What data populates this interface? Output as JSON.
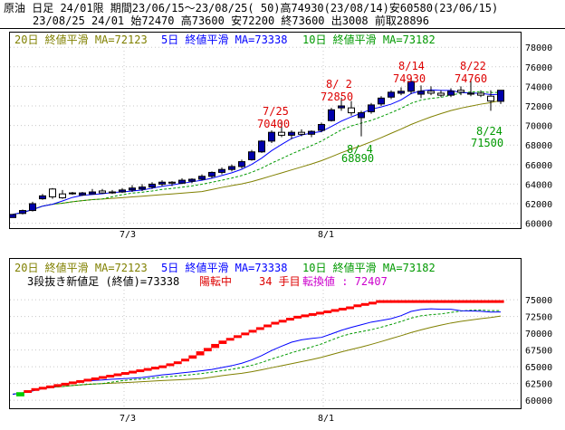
{
  "header": {
    "line1": "原油 日足 24/01限 期間23/06/15～23/08/25( 50)高74930(23/08/14)安60580(23/06/15)",
    "line2": "23/08/25 24/01 始72470 高73600 安72200 終73600 出3008 前取28896"
  },
  "colors": {
    "up": "#0000aa",
    "down": "#ffffff",
    "ma5": "#0000ff",
    "ma10": "#009900",
    "ma20": "#808000",
    "label_red": "#dd0000",
    "label_green": "#009900",
    "brick": "#ff0000",
    "start": "#00cc00"
  },
  "top_legend": {
    "ma20": "20日 終値平滑 MA=72123",
    "ma5": "5日 終値平滑 MA=73338",
    "ma10": "10日 終値平滑 MA=73182"
  },
  "bottom_legend": {
    "ma20": "20日 終値平滑 MA=72123",
    "ma5": "5日 終値平滑 MA=73338",
    "ma10": "10日 終値平滑 MA=73182",
    "kagi_label": "3段抜き新値足 (終値)=73338",
    "turn": "陽転中",
    "count": "34 手目",
    "conv": "転換値 : 72407"
  },
  "chart_data": [
    {
      "type": "candlestick",
      "ylim": [
        59500,
        79500
      ],
      "yticks": [
        "60000",
        "62000",
        "64000",
        "66000",
        "68000",
        "70000",
        "72000",
        "74000",
        "76000",
        "78000"
      ],
      "xticks": [
        "7/3",
        "8/1"
      ],
      "annotations": [
        {
          "date": "7/25",
          "value": "70400",
          "color": "red"
        },
        {
          "date": "8/ 2",
          "value": "72850",
          "color": "red"
        },
        {
          "date": "8/14",
          "value": "74930",
          "color": "red"
        },
        {
          "date": "8/22",
          "value": "74760",
          "color": "red"
        },
        {
          "date": "8/ 4",
          "value": "68890",
          "color": "green"
        },
        {
          "date": "8/24",
          "value": "71500",
          "color": "green"
        }
      ],
      "candles": [
        [
          60580,
          60900,
          60580,
          60900
        ],
        [
          61000,
          61400,
          60900,
          61300
        ],
        [
          61300,
          62200,
          61200,
          62000
        ],
        [
          62500,
          63000,
          62400,
          62800
        ],
        [
          63500,
          63600,
          62500,
          62700
        ],
        [
          63000,
          63400,
          62500,
          62600
        ],
        [
          63100,
          63200,
          62900,
          63100
        ],
        [
          62900,
          63200,
          62800,
          63100
        ],
        [
          63000,
          63500,
          63000,
          63200
        ],
        [
          63300,
          63500,
          63000,
          63100
        ],
        [
          63100,
          63400,
          63000,
          63200
        ],
        [
          63200,
          63600,
          63100,
          63400
        ],
        [
          63400,
          63900,
          63200,
          63600
        ],
        [
          63500,
          64000,
          63300,
          63700
        ],
        [
          63700,
          64200,
          63500,
          64000
        ],
        [
          64000,
          64400,
          63800,
          64200
        ],
        [
          64200,
          64300,
          63800,
          64100
        ],
        [
          64100,
          64600,
          64000,
          64400
        ],
        [
          64300,
          64600,
          64100,
          64500
        ],
        [
          64500,
          65000,
          64400,
          64800
        ],
        [
          64800,
          65300,
          64600,
          65200
        ],
        [
          65200,
          65700,
          65000,
          65500
        ],
        [
          65500,
          66000,
          65300,
          65800
        ],
        [
          65800,
          66500,
          65600,
          66300
        ],
        [
          66500,
          67500,
          66400,
          67300
        ],
        [
          67300,
          68500,
          67200,
          68400
        ],
        [
          68400,
          69500,
          68200,
          69300
        ],
        [
          69300,
          70400,
          68800,
          69000
        ],
        [
          69000,
          69500,
          68600,
          69300
        ],
        [
          69300,
          69600,
          68900,
          69100
        ],
        [
          69100,
          69500,
          68800,
          69400
        ],
        [
          69500,
          70300,
          69300,
          70100
        ],
        [
          70500,
          71800,
          70400,
          71600
        ],
        [
          71800,
          72850,
          71500,
          72000
        ],
        [
          71800,
          72500,
          71000,
          71300
        ],
        [
          70800,
          71500,
          68890,
          71300
        ],
        [
          71400,
          72300,
          71200,
          72100
        ],
        [
          72200,
          73000,
          72000,
          72800
        ],
        [
          72900,
          73600,
          72700,
          73400
        ],
        [
          73300,
          73900,
          73100,
          73500
        ],
        [
          73500,
          74930,
          73200,
          74500
        ],
        [
          73200,
          74100,
          72800,
          73500
        ],
        [
          73500,
          74000,
          73100,
          73300
        ],
        [
          73300,
          73600,
          72900,
          73100
        ],
        [
          73100,
          73800,
          72900,
          73500
        ],
        [
          73600,
          74000,
          73100,
          73400
        ],
        [
          73200,
          74760,
          73000,
          73300
        ],
        [
          73300,
          73600,
          72900,
          73100
        ],
        [
          73000,
          73600,
          71500,
          72500
        ],
        [
          72470,
          73600,
          72200,
          73600
        ]
      ],
      "ma_note": "MA5 / MA10 / MA20 smoothed close lines"
    },
    {
      "type": "bar",
      "subtype": "3-line break (closing)",
      "ylim": [
        58800,
        76500
      ],
      "yticks": [
        "60000",
        "62500",
        "65000",
        "67500",
        "70000",
        "72500",
        "75000"
      ],
      "xticks": [
        "7/3",
        "8/1"
      ],
      "bricks": [
        [
          60580,
          61200
        ],
        [
          61200,
          61500
        ],
        [
          61500,
          61800
        ],
        [
          61800,
          62000
        ],
        [
          62000,
          62200
        ],
        [
          62200,
          62400
        ],
        [
          62400,
          62600
        ],
        [
          62600,
          62800
        ],
        [
          62800,
          63000
        ],
        [
          63000,
          63200
        ],
        [
          63200,
          63400
        ],
        [
          63400,
          63600
        ],
        [
          63600,
          63800
        ],
        [
          63800,
          64000
        ],
        [
          64000,
          64200
        ],
        [
          64200,
          64400
        ],
        [
          64400,
          64600
        ],
        [
          64600,
          64800
        ],
        [
          64800,
          65000
        ],
        [
          65000,
          65200
        ],
        [
          65200,
          65500
        ],
        [
          65500,
          65800
        ],
        [
          65800,
          66200
        ],
        [
          66200,
          66700
        ],
        [
          66700,
          67300
        ],
        [
          67300,
          67800
        ],
        [
          67800,
          68400
        ],
        [
          68400,
          68900
        ],
        [
          68900,
          69300
        ],
        [
          69300,
          69700
        ],
        [
          69700,
          70100
        ],
        [
          70100,
          70500
        ],
        [
          70500,
          70900
        ],
        [
          70900,
          71300
        ],
        [
          71300,
          71700
        ],
        [
          71700,
          72000
        ],
        [
          72000,
          72300
        ],
        [
          72300,
          72600
        ],
        [
          72600,
          72800
        ],
        [
          72800,
          73000
        ],
        [
          73000,
          73200
        ],
        [
          73200,
          73400
        ],
        [
          73400,
          73600
        ],
        [
          73600,
          73800
        ],
        [
          73800,
          74000
        ],
        [
          74000,
          74300
        ],
        [
          74300,
          74500
        ],
        [
          74500,
          74700
        ],
        [
          74700,
          74930
        ],
        [
          74900,
          74930
        ],
        [
          74900,
          74930
        ],
        [
          74900,
          74930
        ],
        [
          74900,
          74930
        ],
        [
          74900,
          74930
        ],
        [
          74900,
          74930
        ],
        [
          74900,
          74930
        ],
        [
          74900,
          74930
        ],
        [
          74900,
          74930
        ],
        [
          74900,
          74930
        ],
        [
          74900,
          74930
        ],
        [
          74900,
          74930
        ],
        [
          74900,
          74930
        ],
        [
          74900,
          74930
        ],
        [
          74900,
          74930
        ],
        [
          74900,
          74930
        ]
      ]
    }
  ]
}
